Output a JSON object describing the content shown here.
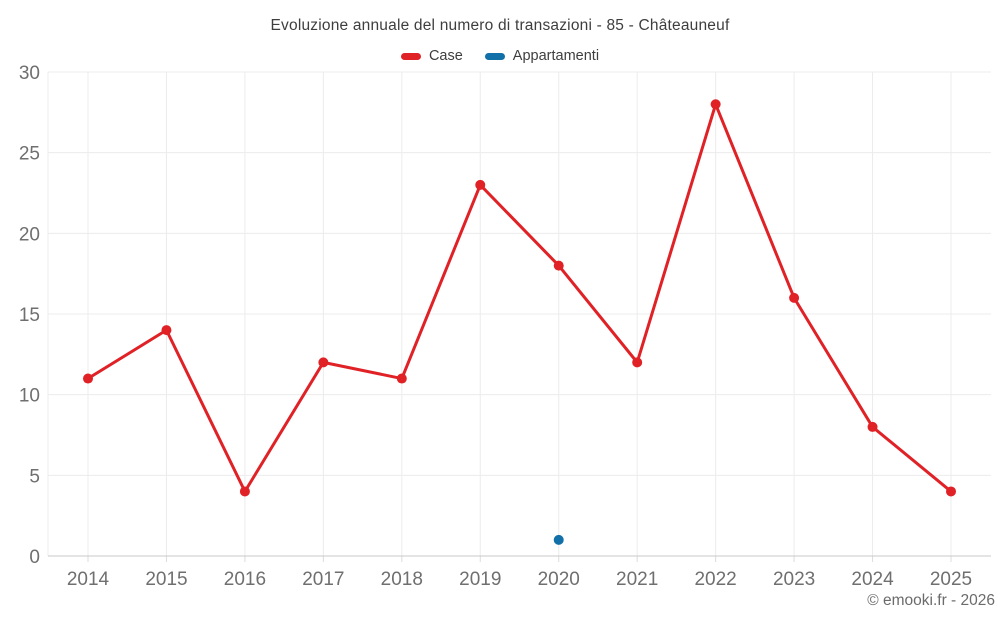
{
  "title": "Evoluzione annuale del numero di transazioni - 85 - Châteauneuf",
  "legend": [
    {
      "label": "Case",
      "color": "#e02227"
    },
    {
      "label": "Appartamenti",
      "color": "#1270a8"
    }
  ],
  "footer": "© emooki.fr - 2026",
  "chart_data": {
    "type": "line",
    "title": "Evoluzione annuale del numero di transazioni - 85 - Châteauneuf",
    "x": [
      "2014",
      "2015",
      "2016",
      "2017",
      "2018",
      "2019",
      "2020",
      "2021",
      "2022",
      "2023",
      "2024",
      "2025"
    ],
    "series": [
      {
        "name": "Case",
        "color": "#e02227",
        "values": [
          11,
          14,
          4,
          12,
          11,
          23,
          18,
          12,
          28,
          16,
          8,
          4
        ]
      },
      {
        "name": "Appartamenti",
        "color": "#1270a8",
        "values": [
          null,
          null,
          null,
          null,
          null,
          null,
          1,
          null,
          null,
          null,
          null,
          null
        ]
      }
    ],
    "ylim": [
      0,
      30
    ],
    "yticks": [
      0,
      5,
      10,
      15,
      20,
      25,
      30
    ],
    "grid": true,
    "legend_position": "top",
    "annotation": "© emooki.fr - 2026"
  }
}
